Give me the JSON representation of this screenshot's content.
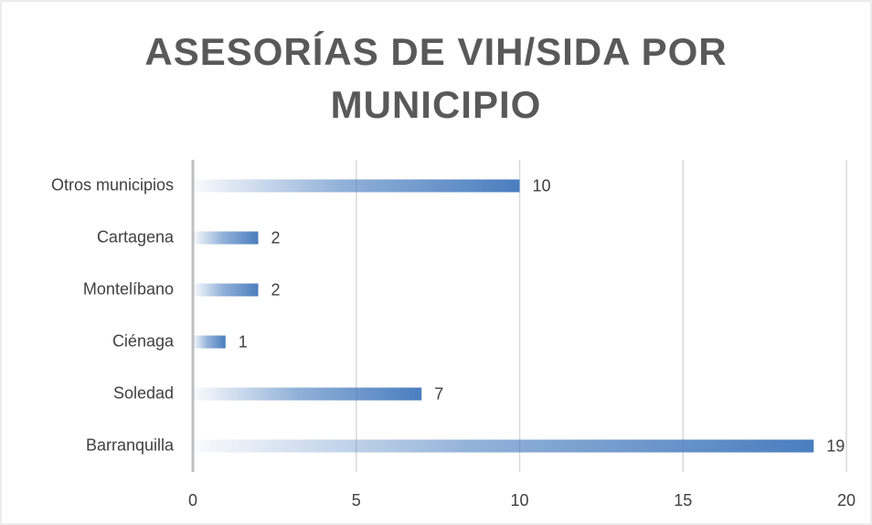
{
  "chart_data": {
    "type": "bar",
    "orientation": "horizontal",
    "title": "ASESORÍAS DE VIH/SIDA POR MUNICIPIO",
    "categories": [
      "Barranquilla",
      "Soledad",
      "Ciénaga",
      "Montelíbano",
      "Cartagena",
      "Otros municipios"
    ],
    "values": [
      19,
      7,
      1,
      2,
      2,
      10
    ],
    "color": "#4a7ebf",
    "xlim": [
      0,
      20
    ],
    "xticks": [
      0,
      5,
      10,
      15,
      20
    ],
    "grid": true
  }
}
